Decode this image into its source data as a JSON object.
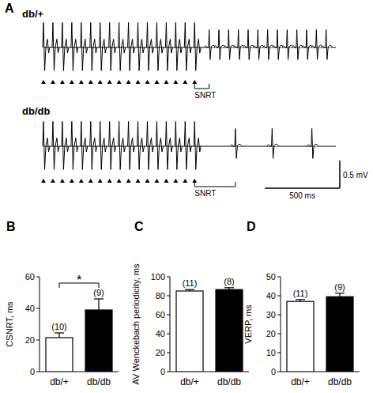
{
  "panel_a": {
    "label": "A",
    "xlim": [
      0,
      1950
    ],
    "ylim": [
      -0.5,
      0.5
    ],
    "traces": [
      {
        "name": "db/+",
        "interval_label": "SNRT",
        "stimuli_ms": [
          0,
          63,
          126,
          189,
          252,
          315,
          378,
          441,
          504,
          567,
          630,
          693,
          756,
          819,
          882,
          945,
          1008
        ],
        "beats_ms": [
          1105,
          1170,
          1235,
          1300,
          1365,
          1430,
          1495,
          1560,
          1625,
          1690,
          1755,
          1820,
          1885
        ]
      },
      {
        "name": "db/db",
        "interval_label": "SNRT",
        "stimuli_ms": [
          0,
          63,
          126,
          189,
          252,
          315,
          378,
          441,
          504,
          567,
          630,
          693,
          756,
          819,
          882,
          945,
          1008
        ],
        "beats_ms": [
          1280,
          1525,
          1790
        ]
      }
    ],
    "scale_bar": {
      "time_ms": 500,
      "time_label": "500 ms",
      "voltage_mV": 0.5,
      "voltage_label": "0.5 mV"
    }
  },
  "chart_data": [
    {
      "type": "bar",
      "panel_label": "B",
      "y_label": "CSNRT, ms",
      "categories": [
        "db/+",
        "db/db"
      ],
      "values": [
        21.5,
        39
      ],
      "errors": [
        3,
        7
      ],
      "n_labels": [
        "(10)",
        "(9)"
      ],
      "colors": [
        "#ffffff",
        "#000000"
      ],
      "ylim": [
        0,
        60
      ],
      "yticks": [
        0,
        20,
        40,
        60
      ],
      "significance_label": "*"
    },
    {
      "type": "bar",
      "panel_label": "C",
      "y_label": "AV Wenckebach periodicity, ms",
      "categories": [
        "db/+",
        "db/db"
      ],
      "values": [
        85,
        86.5
      ],
      "errors": [
        1.5,
        2
      ],
      "n_labels": [
        "(11)",
        "(8)"
      ],
      "colors": [
        "#ffffff",
        "#000000"
      ],
      "ylim": [
        0,
        100
      ],
      "yticks": [
        0,
        20,
        40,
        60,
        80,
        100
      ]
    },
    {
      "type": "bar",
      "panel_label": "D",
      "y_label": "VERP, ms",
      "categories": [
        "db/+",
        "db/db"
      ],
      "values": [
        37,
        39.5
      ],
      "errors": [
        1,
        1.8
      ],
      "n_labels": [
        "(11)",
        "(9)"
      ],
      "colors": [
        "#ffffff",
        "#000000"
      ],
      "ylim": [
        0,
        50
      ],
      "yticks": [
        0,
        10,
        20,
        30,
        40,
        50
      ]
    }
  ]
}
